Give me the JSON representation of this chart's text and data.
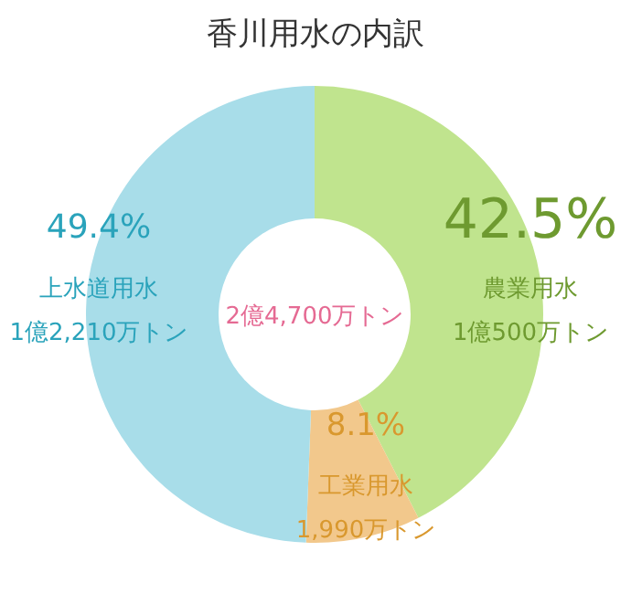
{
  "chart_data": {
    "type": "donut",
    "title": "香川用水の内訳",
    "categories": [
      "農業用水",
      "工業用水",
      "上水道用水"
    ],
    "values": [
      42.5,
      8.1,
      49.4
    ],
    "colors": [
      "#c0e48e",
      "#f2c88c",
      "#a8dde9"
    ],
    "value_labels": [
      "42.5%",
      "8.1%",
      "49.4%"
    ],
    "annotations": [
      {
        "text": "1億500万トン",
        "x": "農業用水"
      },
      {
        "text": "1,990万トン",
        "x": "工業用水"
      },
      {
        "text": "1億2,210万トン",
        "x": "上水道用水"
      },
      "2億4,700万トン"
    ]
  }
}
